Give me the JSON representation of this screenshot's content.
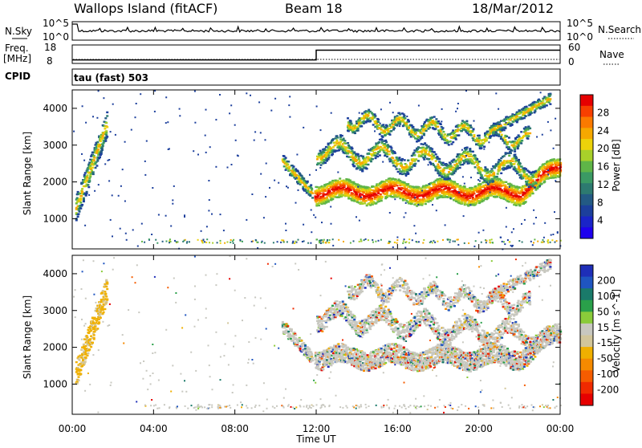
{
  "header": {
    "station": "Wallops Island (fitACF)",
    "beam": "Beam 18",
    "date": "18/Mar/2012"
  },
  "noise_panel": {
    "left_label": "N.Sky",
    "right_label": "N.Search",
    "left_ticks": [
      "10^5",
      "10^0"
    ],
    "right_ticks": [
      "10^5",
      "10^0"
    ]
  },
  "freq_panel": {
    "left_label_1": "Freq.",
    "left_label_2": "[MHz]",
    "right_label": "Nave",
    "left_ticks": [
      "18",
      "8"
    ],
    "right_ticks": [
      "60",
      "0"
    ],
    "freq_steps": [
      {
        "t": 0,
        "mhz": 10.0
      },
      {
        "t": 12,
        "mhz": 15.5
      },
      {
        "t": 24,
        "mhz": 15.5
      }
    ],
    "nave_value": 9
  },
  "cpid": {
    "label": "CPID",
    "value": "tau (fast) 503"
  },
  "power_panel": {
    "ylabel": "Slant Range [km]",
    "cbar_label": "Power [dB]",
    "cbar_ticks": [
      "28",
      "24",
      "20",
      "16",
      "12",
      "8",
      "4"
    ],
    "cbar_colors": [
      "#e60000",
      "#f73f00",
      "#fb7a00",
      "#f6a800",
      "#ecd20a",
      "#a8d02a",
      "#5fb548",
      "#3b9a64",
      "#2d7a70",
      "#235a84",
      "#1c3f9c",
      "#1a24c8",
      "#1e00ee"
    ]
  },
  "velocity_panel": {
    "ylabel": "Slant Range [km]",
    "cbar_label": "Velocity [m s^-1]",
    "cbar_ticks": [
      "200",
      "100",
      "50",
      "15",
      "-15",
      "-50",
      "-100",
      "-200"
    ],
    "cbar_colors": [
      "#1e2eb8",
      "#1f55c0",
      "#1a7a6a",
      "#2aa04a",
      "#8acb3a",
      "#c8c8c0",
      "#d2c69a",
      "#f0b000",
      "#f58a00",
      "#f55c00",
      "#f02a00",
      "#e60000"
    ]
  },
  "x_axis": {
    "label": "Time UT",
    "ticks": [
      "00:00",
      "04:00",
      "08:00",
      "12:00",
      "16:00",
      "20:00",
      "00:00"
    ]
  },
  "y_ticks": [
    "4000",
    "3000",
    "2000",
    "1000"
  ],
  "chart_data": {
    "type": "heatmap",
    "x_range_hours": [
      0,
      24
    ],
    "y_range_km": [
      180,
      4500
    ],
    "power_features": [
      {
        "t0": 0.1,
        "t1": 1.7,
        "r0": 1200,
        "r1": 3800,
        "level": "high",
        "note_free": true
      },
      {
        "t0": 10.2,
        "t1": 11.7,
        "r0": 1500,
        "r1": 2400,
        "level": "mid"
      },
      {
        "t0": 11.8,
        "t1": 24,
        "r0": 1300,
        "r1": 2400,
        "level": "high"
      },
      {
        "t0": 12.2,
        "t1": 22.5,
        "r0": 2400,
        "r1": 4200,
        "level": "mid"
      }
    ]
  }
}
